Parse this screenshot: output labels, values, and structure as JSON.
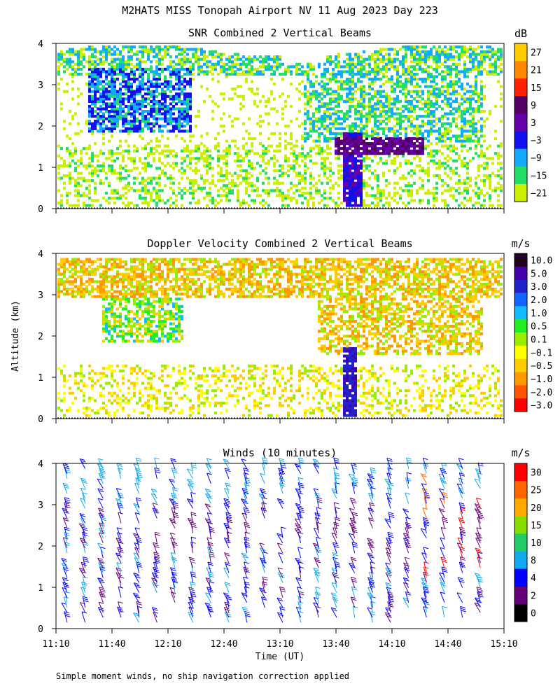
{
  "figure_title": "M2HATS MISS Tonopah Airport NV  11 Aug 2023 Day 223",
  "ylabel": "Altitude (km)",
  "xlabel": "Time (UT)",
  "footnote": "Simple moment winds, no ship navigation correction applied",
  "time_ticks": [
    "11:10",
    "11:40",
    "12:10",
    "12:40",
    "13:10",
    "13:40",
    "14:10",
    "14:40",
    "15:10"
  ],
  "chart_data": [
    {
      "type": "heatmap",
      "title": "SNR Combined 2 Vertical Beams",
      "units": "dB",
      "x_range": [
        "11:10",
        "15:10"
      ],
      "ylim": [
        0,
        4
      ],
      "yticks": [
        "0",
        "1",
        "2",
        "3",
        "4"
      ],
      "colorbar": {
        "labels": [
          "27",
          "21",
          "15",
          "9",
          "3",
          "−3",
          "−9",
          "−15",
          "−21"
        ],
        "colors": [
          "#ffcc00",
          "#ff8800",
          "#ff2200",
          "#550066",
          "#6600aa",
          "#1111ee",
          "#11aaff",
          "#22dd66",
          "#ccee00"
        ]
      }
    },
    {
      "type": "heatmap",
      "title": "Doppler Velocity Combined 2 Vertical Beams",
      "units": "m/s",
      "x_range": [
        "11:10",
        "15:10"
      ],
      "ylim": [
        0,
        4
      ],
      "yticks": [
        "0",
        "1",
        "2",
        "3",
        "4"
      ],
      "colorbar": {
        "labels": [
          "10.0",
          "5.0",
          "3.0",
          "2.0",
          "1.0",
          "0.5",
          "0.1",
          "−0.1",
          "−0.5",
          "−1.0",
          "−2.0",
          "−3.0"
        ],
        "colors": [
          "#220022",
          "#4400aa",
          "#2222cc",
          "#1166ff",
          "#11bbff",
          "#22ee22",
          "#99ee00",
          "#ffff00",
          "#ffcc00",
          "#ff9900",
          "#ff5500",
          "#ff0000"
        ]
      }
    },
    {
      "type": "scatter",
      "title": "Winds (10 minutes)",
      "units": "m/s",
      "x_range": [
        "11:10",
        "15:10"
      ],
      "ylim": [
        0,
        4
      ],
      "yticks": [
        "0",
        "1",
        "2",
        "3",
        "4"
      ],
      "colorbar": {
        "labels": [
          "30",
          "25",
          "20",
          "15",
          "10",
          "8",
          "4",
          "2",
          "0"
        ],
        "colors": [
          "#ff0000",
          "#ff6600",
          "#ffaa00",
          "#88dd00",
          "#22cc66",
          "#11aaee",
          "#0000ff",
          "#660077",
          "#000000"
        ]
      }
    }
  ]
}
